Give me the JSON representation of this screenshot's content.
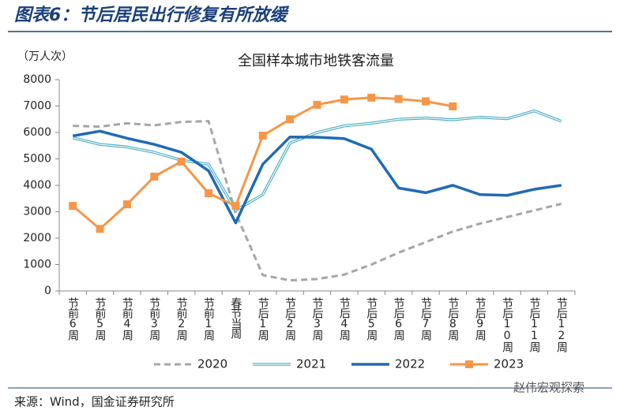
{
  "header": {
    "title": "图表6：节后居民出行修复有所放缓"
  },
  "chart_data": {
    "type": "line",
    "title": "全国样本城市地铁客流量",
    "y_label": "（万人次）",
    "categories": [
      "节前6周",
      "节前5周",
      "节前4周",
      "节前3周",
      "节前2周",
      "节前1周",
      "春节当周",
      "节后1周",
      "节后2周",
      "节后3周",
      "节后4周",
      "节后5周",
      "节后6周",
      "节后7周",
      "节后8周",
      "节后9周",
      "节后10周",
      "节后11周",
      "节后12周"
    ],
    "series": [
      {
        "name": "2020",
        "color": "#a6a6a6",
        "values": [
          6250,
          6220,
          6350,
          6270,
          6400,
          6430,
          2950,
          600,
          400,
          450,
          620,
          1000,
          1450,
          1850,
          2250,
          2550,
          2800,
          3050,
          3300
        ]
      },
      {
        "name": "2021",
        "color": "#4bacc6",
        "values": [
          5800,
          5550,
          5450,
          5250,
          4950,
          4800,
          3050,
          3650,
          5600,
          6000,
          6250,
          6350,
          6500,
          6550,
          6480,
          6580,
          6520,
          6820,
          6420
        ]
      },
      {
        "name": "2022",
        "color": "#1f6bb5",
        "values": [
          5870,
          6050,
          5780,
          5550,
          5250,
          4550,
          2580,
          4800,
          5830,
          5820,
          5770,
          5370,
          3900,
          3720,
          4000,
          3650,
          3620,
          3850,
          4000
        ]
      },
      {
        "name": "2023",
        "color": "#f79646",
        "values": [
          3220,
          2350,
          3280,
          4330,
          4900,
          3700,
          3220,
          5880,
          6500,
          7050,
          7250,
          7320,
          7270,
          7180,
          6990,
          null,
          null,
          null,
          null
        ]
      }
    ],
    "ylim": [
      0,
      8000
    ],
    "yticks": [
      0,
      1000,
      2000,
      3000,
      4000,
      5000,
      6000,
      7000,
      8000
    ]
  },
  "footer": {
    "source": "来源：Wind，国金证券研究所",
    "watermark": "赵伟宏观探索"
  }
}
